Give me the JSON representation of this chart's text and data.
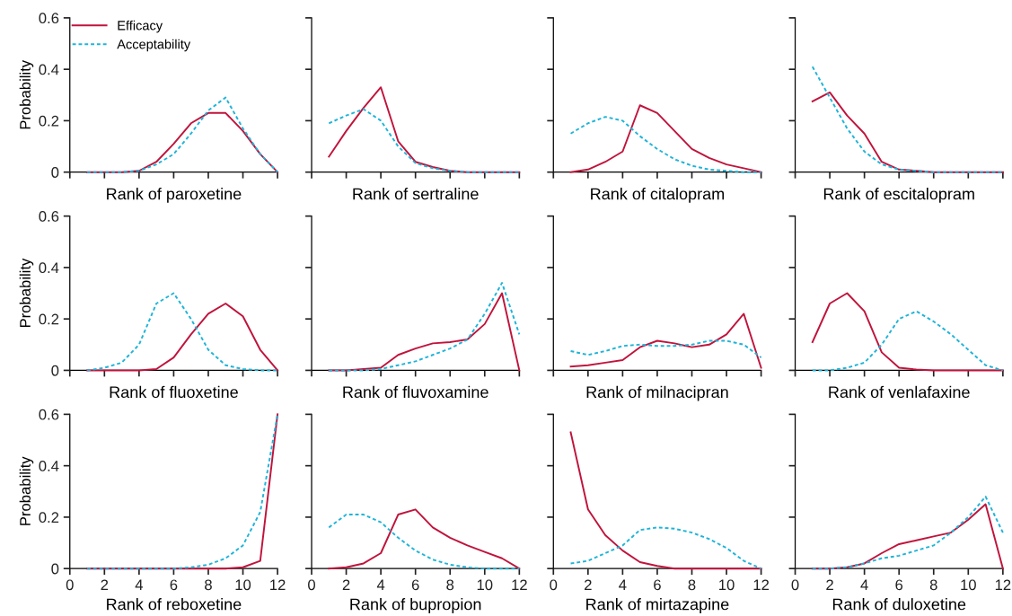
{
  "chart_data": [
    {
      "type": "line",
      "xlabel": "Rank of paroxetine",
      "ylabel": "Probability",
      "x": [
        1,
        2,
        3,
        4,
        5,
        6,
        7,
        8,
        9,
        10,
        11,
        12
      ],
      "xlim": [
        0,
        12
      ],
      "xticks": [
        {
          "value": 0,
          "label": null
        },
        {
          "value": 2,
          "label": null
        },
        {
          "value": 4,
          "label": null
        },
        {
          "value": 6,
          "label": null
        },
        {
          "value": 8,
          "label": null
        },
        {
          "value": 10,
          "label": null
        },
        {
          "value": 12,
          "label": null
        }
      ],
      "ylim": [
        0,
        0.6
      ],
      "yticks": [
        0,
        0.2,
        0.4,
        0.6
      ],
      "tick_labels": "y",
      "legend": "top left",
      "series": [
        {
          "name": "Efficacy",
          "color": "#c0143c",
          "line_style": "solid",
          "values": [
            0,
            0,
            0,
            0.005,
            0.04,
            0.11,
            0.19,
            0.23,
            0.23,
            0.16,
            0.07,
            0
          ]
        },
        {
          "name": "Acceptability",
          "color": "#1fb4d8",
          "line_style": "dashed",
          "values": [
            0,
            0,
            0,
            0.005,
            0.03,
            0.07,
            0.15,
            0.24,
            0.29,
            0.17,
            0.07,
            0
          ]
        }
      ]
    },
    {
      "type": "line",
      "xlabel": "Rank of sertraline",
      "x": [
        1,
        2,
        3,
        4,
        5,
        6,
        7,
        8,
        9,
        10,
        11,
        12
      ],
      "xlim": [
        0,
        12
      ],
      "xticks": [
        {
          "value": 0,
          "label": null
        },
        {
          "value": 2,
          "label": null
        },
        {
          "value": 4,
          "label": null
        },
        {
          "value": 6,
          "label": null
        },
        {
          "value": 8,
          "label": null
        },
        {
          "value": 10,
          "label": null
        },
        {
          "value": 12,
          "label": null
        }
      ],
      "ylim": [
        0,
        0.6
      ],
      "yticks": [
        {
          "value": 0,
          "label": null
        },
        {
          "value": 0.2,
          "label": null
        },
        {
          "value": 0.4,
          "label": null
        },
        {
          "value": 0.6,
          "label": null
        }
      ],
      "tick_labels": false,
      "series": [
        {
          "color": "#c0143c",
          "line_style": "solid",
          "values": [
            0.06,
            0.16,
            0.25,
            0.33,
            0.12,
            0.04,
            0.02,
            0.005,
            0,
            0,
            0,
            0
          ]
        },
        {
          "color": "#1fb4d8",
          "line_style": "dashed",
          "values": [
            0.19,
            0.22,
            0.245,
            0.2,
            0.1,
            0.035,
            0.015,
            0.005,
            0,
            0,
            0,
            0
          ]
        }
      ]
    },
    {
      "type": "line",
      "xlabel": "Rank of citalopram",
      "x": [
        1,
        2,
        3,
        4,
        5,
        6,
        7,
        8,
        9,
        10,
        11,
        12
      ],
      "xlim": [
        0,
        12
      ],
      "xticks": [
        {
          "value": 0,
          "label": null
        },
        {
          "value": 2,
          "label": null
        },
        {
          "value": 4,
          "label": null
        },
        {
          "value": 6,
          "label": null
        },
        {
          "value": 8,
          "label": null
        },
        {
          "value": 10,
          "label": null
        },
        {
          "value": 12,
          "label": null
        }
      ],
      "ylim": [
        0,
        0.6
      ],
      "yticks": [
        {
          "value": 0,
          "label": null
        },
        {
          "value": 0.2,
          "label": null
        },
        {
          "value": 0.4,
          "label": null
        },
        {
          "value": 0.6,
          "label": null
        }
      ],
      "tick_labels": false,
      "series": [
        {
          "color": "#c0143c",
          "line_style": "solid",
          "values": [
            0,
            0.01,
            0.04,
            0.08,
            0.26,
            0.23,
            0.16,
            0.09,
            0.055,
            0.03,
            0.015,
            0
          ]
        },
        {
          "color": "#1fb4d8",
          "line_style": "dashed",
          "values": [
            0.15,
            0.19,
            0.215,
            0.2,
            0.14,
            0.09,
            0.05,
            0.025,
            0.01,
            0.005,
            0,
            0
          ]
        }
      ]
    },
    {
      "type": "line",
      "xlabel": "Rank of escitalopram",
      "x": [
        1,
        2,
        3,
        4,
        5,
        6,
        7,
        8,
        9,
        10,
        11,
        12
      ],
      "xlim": [
        0,
        12
      ],
      "xticks": [
        {
          "value": 0,
          "label": null
        },
        {
          "value": 2,
          "label": null
        },
        {
          "value": 4,
          "label": null
        },
        {
          "value": 6,
          "label": null
        },
        {
          "value": 8,
          "label": null
        },
        {
          "value": 10,
          "label": null
        },
        {
          "value": 12,
          "label": null
        }
      ],
      "ylim": [
        0,
        0.6
      ],
      "yticks": [
        {
          "value": 0,
          "label": null
        },
        {
          "value": 0.2,
          "label": null
        },
        {
          "value": 0.4,
          "label": null
        },
        {
          "value": 0.6,
          "label": null
        }
      ],
      "tick_labels": false,
      "series": [
        {
          "color": "#c0143c",
          "line_style": "solid",
          "values": [
            0.275,
            0.31,
            0.22,
            0.15,
            0.04,
            0.01,
            0.005,
            0,
            0,
            0,
            0,
            0
          ]
        },
        {
          "color": "#1fb4d8",
          "line_style": "dashed",
          "values": [
            0.41,
            0.29,
            0.17,
            0.08,
            0.03,
            0.01,
            0.005,
            0,
            0,
            0,
            0,
            0
          ]
        }
      ]
    },
    {
      "type": "line",
      "xlabel": "Rank of fluoxetine",
      "ylabel": "Probability",
      "x": [
        1,
        2,
        3,
        4,
        5,
        6,
        7,
        8,
        9,
        10,
        11,
        12
      ],
      "xlim": [
        0,
        12
      ],
      "xticks": [
        {
          "value": 0,
          "label": null
        },
        {
          "value": 2,
          "label": null
        },
        {
          "value": 4,
          "label": null
        },
        {
          "value": 6,
          "label": null
        },
        {
          "value": 8,
          "label": null
        },
        {
          "value": 10,
          "label": null
        },
        {
          "value": 12,
          "label": null
        }
      ],
      "ylim": [
        0,
        0.6
      ],
      "yticks": [
        0,
        0.2,
        0.4,
        0.6
      ],
      "tick_labels": "y",
      "series": [
        {
          "color": "#c0143c",
          "line_style": "solid",
          "values": [
            0,
            0,
            0,
            0,
            0.005,
            0.05,
            0.14,
            0.22,
            0.26,
            0.21,
            0.08,
            0
          ]
        },
        {
          "color": "#1fb4d8",
          "line_style": "dashed",
          "values": [
            0,
            0.01,
            0.03,
            0.1,
            0.26,
            0.3,
            0.2,
            0.08,
            0.02,
            0.005,
            0,
            0
          ]
        }
      ]
    },
    {
      "type": "line",
      "xlabel": "Rank of fluvoxamine",
      "x": [
        1,
        2,
        3,
        4,
        5,
        6,
        7,
        8,
        9,
        10,
        11,
        12
      ],
      "xlim": [
        0,
        12
      ],
      "xticks": [
        {
          "value": 0,
          "label": null
        },
        {
          "value": 2,
          "label": null
        },
        {
          "value": 4,
          "label": null
        },
        {
          "value": 6,
          "label": null
        },
        {
          "value": 8,
          "label": null
        },
        {
          "value": 10,
          "label": null
        },
        {
          "value": 12,
          "label": null
        }
      ],
      "ylim": [
        0,
        0.6
      ],
      "yticks": [
        {
          "value": 0,
          "label": null
        },
        {
          "value": 0.2,
          "label": null
        },
        {
          "value": 0.4,
          "label": null
        },
        {
          "value": 0.6,
          "label": null
        }
      ],
      "tick_labels": false,
      "series": [
        {
          "color": "#c0143c",
          "line_style": "solid",
          "values": [
            0,
            0,
            0.005,
            0.01,
            0.06,
            0.085,
            0.105,
            0.11,
            0.12,
            0.18,
            0.3,
            0
          ]
        },
        {
          "color": "#1fb4d8",
          "line_style": "dashed",
          "values": [
            0,
            0,
            0,
            0.005,
            0.02,
            0.035,
            0.06,
            0.085,
            0.12,
            0.22,
            0.34,
            0.14
          ]
        }
      ]
    },
    {
      "type": "line",
      "xlabel": "Rank of milnacipran",
      "x": [
        1,
        2,
        3,
        4,
        5,
        6,
        7,
        8,
        9,
        10,
        11,
        12
      ],
      "xlim": [
        0,
        12
      ],
      "xticks": [
        {
          "value": 0,
          "label": null
        },
        {
          "value": 2,
          "label": null
        },
        {
          "value": 4,
          "label": null
        },
        {
          "value": 6,
          "label": null
        },
        {
          "value": 8,
          "label": null
        },
        {
          "value": 10,
          "label": null
        },
        {
          "value": 12,
          "label": null
        }
      ],
      "ylim": [
        0,
        0.6
      ],
      "yticks": [
        {
          "value": 0,
          "label": null
        },
        {
          "value": 0.2,
          "label": null
        },
        {
          "value": 0.4,
          "label": null
        },
        {
          "value": 0.6,
          "label": null
        }
      ],
      "tick_labels": false,
      "series": [
        {
          "color": "#c0143c",
          "line_style": "solid",
          "values": [
            0.015,
            0.02,
            0.03,
            0.04,
            0.09,
            0.115,
            0.105,
            0.09,
            0.1,
            0.14,
            0.22,
            0.01
          ]
        },
        {
          "color": "#1fb4d8",
          "line_style": "dashed",
          "values": [
            0.075,
            0.06,
            0.075,
            0.095,
            0.1,
            0.095,
            0.095,
            0.1,
            0.115,
            0.115,
            0.1,
            0.05
          ]
        }
      ]
    },
    {
      "type": "line",
      "xlabel": "Rank of venlafaxine",
      "x": [
        1,
        2,
        3,
        4,
        5,
        6,
        7,
        8,
        9,
        10,
        11,
        12
      ],
      "xlim": [
        0,
        12
      ],
      "xticks": [
        {
          "value": 0,
          "label": null
        },
        {
          "value": 2,
          "label": null
        },
        {
          "value": 4,
          "label": null
        },
        {
          "value": 6,
          "label": null
        },
        {
          "value": 8,
          "label": null
        },
        {
          "value": 10,
          "label": null
        },
        {
          "value": 12,
          "label": null
        }
      ],
      "ylim": [
        0,
        0.6
      ],
      "yticks": [
        {
          "value": 0,
          "label": null
        },
        {
          "value": 0.2,
          "label": null
        },
        {
          "value": 0.4,
          "label": null
        },
        {
          "value": 0.6,
          "label": null
        }
      ],
      "tick_labels": false,
      "series": [
        {
          "color": "#c0143c",
          "line_style": "solid",
          "values": [
            0.11,
            0.26,
            0.3,
            0.23,
            0.07,
            0.01,
            0.003,
            0,
            0,
            0,
            0,
            0
          ]
        },
        {
          "color": "#1fb4d8",
          "line_style": "dashed",
          "values": [
            0,
            0,
            0.01,
            0.03,
            0.1,
            0.2,
            0.23,
            0.19,
            0.14,
            0.08,
            0.02,
            0
          ]
        }
      ]
    },
    {
      "type": "line",
      "xlabel": "Rank of reboxetine",
      "ylabel": "Probability",
      "x": [
        1,
        2,
        3,
        4,
        5,
        6,
        7,
        8,
        9,
        10,
        11,
        12
      ],
      "xlim": [
        0,
        12
      ],
      "xticks": [
        0,
        2,
        4,
        6,
        8,
        10,
        12
      ],
      "ylim": [
        0,
        0.6
      ],
      "yticks": [
        0,
        0.2,
        0.4,
        0.6
      ],
      "series": [
        {
          "color": "#c0143c",
          "line_style": "solid",
          "values": [
            0,
            0,
            0,
            0,
            0,
            0,
            0,
            0,
            0,
            0.005,
            0.03,
            0.6
          ]
        },
        {
          "color": "#1fb4d8",
          "line_style": "dashed",
          "values": [
            0,
            0,
            0,
            0,
            0,
            0,
            0.005,
            0.015,
            0.04,
            0.09,
            0.22,
            0.6
          ]
        }
      ]
    },
    {
      "type": "line",
      "xlabel": "Rank of bupropion",
      "x": [
        1,
        2,
        3,
        4,
        5,
        6,
        7,
        8,
        9,
        10,
        11,
        12
      ],
      "xlim": [
        0,
        12
      ],
      "xticks": [
        0,
        2,
        4,
        6,
        8,
        10,
        12
      ],
      "ylim": [
        0,
        0.6
      ],
      "yticks": [
        {
          "value": 0,
          "label": null
        },
        {
          "value": 0.2,
          "label": null
        },
        {
          "value": 0.4,
          "label": null
        },
        {
          "value": 0.6,
          "label": null
        }
      ],
      "tick_labels": "x",
      "series": [
        {
          "color": "#c0143c",
          "line_style": "solid",
          "values": [
            0,
            0.005,
            0.02,
            0.06,
            0.21,
            0.23,
            0.16,
            0.12,
            0.09,
            0.065,
            0.04,
            0
          ]
        },
        {
          "color": "#1fb4d8",
          "line_style": "dashed",
          "values": [
            0.16,
            0.21,
            0.21,
            0.18,
            0.12,
            0.07,
            0.035,
            0.015,
            0.005,
            0,
            0,
            0
          ]
        }
      ]
    },
    {
      "type": "line",
      "xlabel": "Rank of mirtazapine",
      "x": [
        1,
        2,
        3,
        4,
        5,
        6,
        7,
        8,
        9,
        10,
        11,
        12
      ],
      "xlim": [
        0,
        12
      ],
      "xticks": [
        0,
        2,
        4,
        6,
        8,
        10,
        12
      ],
      "ylim": [
        0,
        0.6
      ],
      "yticks": [
        {
          "value": 0,
          "label": null
        },
        {
          "value": 0.2,
          "label": null
        },
        {
          "value": 0.4,
          "label": null
        },
        {
          "value": 0.6,
          "label": null
        }
      ],
      "tick_labels": "x",
      "series": [
        {
          "color": "#c0143c",
          "line_style": "solid",
          "values": [
            0.53,
            0.23,
            0.13,
            0.07,
            0.025,
            0.01,
            0,
            0,
            0,
            0,
            0,
            0
          ]
        },
        {
          "color": "#1fb4d8",
          "line_style": "dashed",
          "values": [
            0.02,
            0.03,
            0.06,
            0.09,
            0.15,
            0.16,
            0.155,
            0.14,
            0.115,
            0.08,
            0.03,
            0
          ]
        }
      ]
    },
    {
      "type": "line",
      "xlabel": "Rank of duloxetine",
      "x": [
        1,
        2,
        3,
        4,
        5,
        6,
        7,
        8,
        9,
        10,
        11,
        12
      ],
      "xlim": [
        0,
        12
      ],
      "xticks": [
        0,
        2,
        4,
        6,
        8,
        10,
        12
      ],
      "ylim": [
        0,
        0.6
      ],
      "yticks": [
        {
          "value": 0,
          "label": null
        },
        {
          "value": 0.2,
          "label": null
        },
        {
          "value": 0.4,
          "label": null
        },
        {
          "value": 0.6,
          "label": null
        }
      ],
      "tick_labels": "x",
      "series": [
        {
          "color": "#c0143c",
          "line_style": "solid",
          "values": [
            0,
            0,
            0.005,
            0.02,
            0.06,
            0.095,
            0.11,
            0.125,
            0.14,
            0.19,
            0.25,
            0
          ]
        },
        {
          "color": "#1fb4d8",
          "line_style": "dashed",
          "values": [
            0,
            0,
            0.005,
            0.02,
            0.04,
            0.05,
            0.07,
            0.09,
            0.14,
            0.2,
            0.28,
            0.14
          ]
        }
      ]
    }
  ]
}
